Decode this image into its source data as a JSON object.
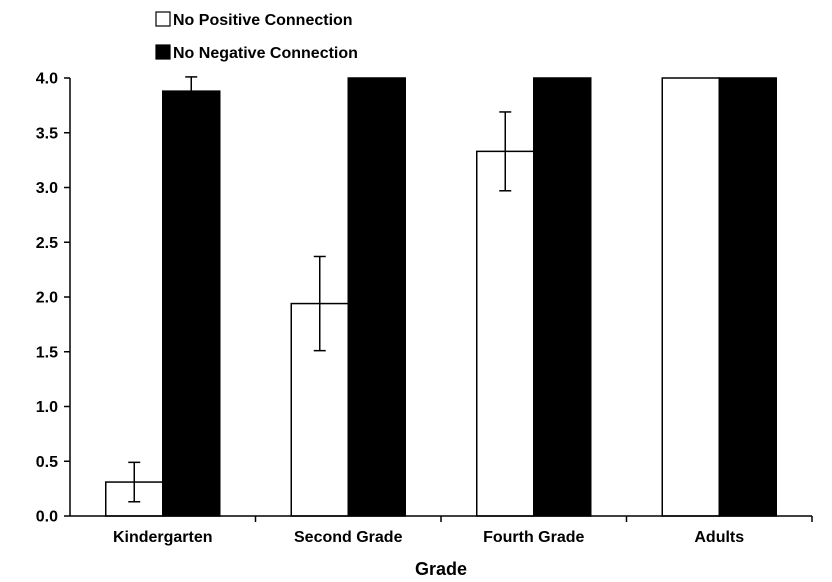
{
  "chart_data": {
    "type": "bar",
    "title": "",
    "xlabel": "Grade",
    "ylabel": "",
    "ylim": [
      0,
      4
    ],
    "yticks": [
      "0.0",
      "0.5",
      "1.0",
      "1.5",
      "2.0",
      "2.5",
      "3.0",
      "3.5",
      "4.0"
    ],
    "categories": [
      "Kindergarten",
      "Second Grade",
      "Fourth Grade",
      "Adults"
    ],
    "legend_position": "top-left",
    "series": [
      {
        "name": "No Positive Connection",
        "color": "#ffffff",
        "values": [
          0.31,
          1.94,
          3.33,
          4.0
        ],
        "errors": [
          0.18,
          0.43,
          0.36,
          0
        ]
      },
      {
        "name": "No Negative Connection",
        "color": "#000000",
        "values": [
          3.88,
          4.0,
          4.0,
          4.0
        ],
        "errors": [
          0.13,
          0,
          0,
          0
        ]
      }
    ]
  }
}
